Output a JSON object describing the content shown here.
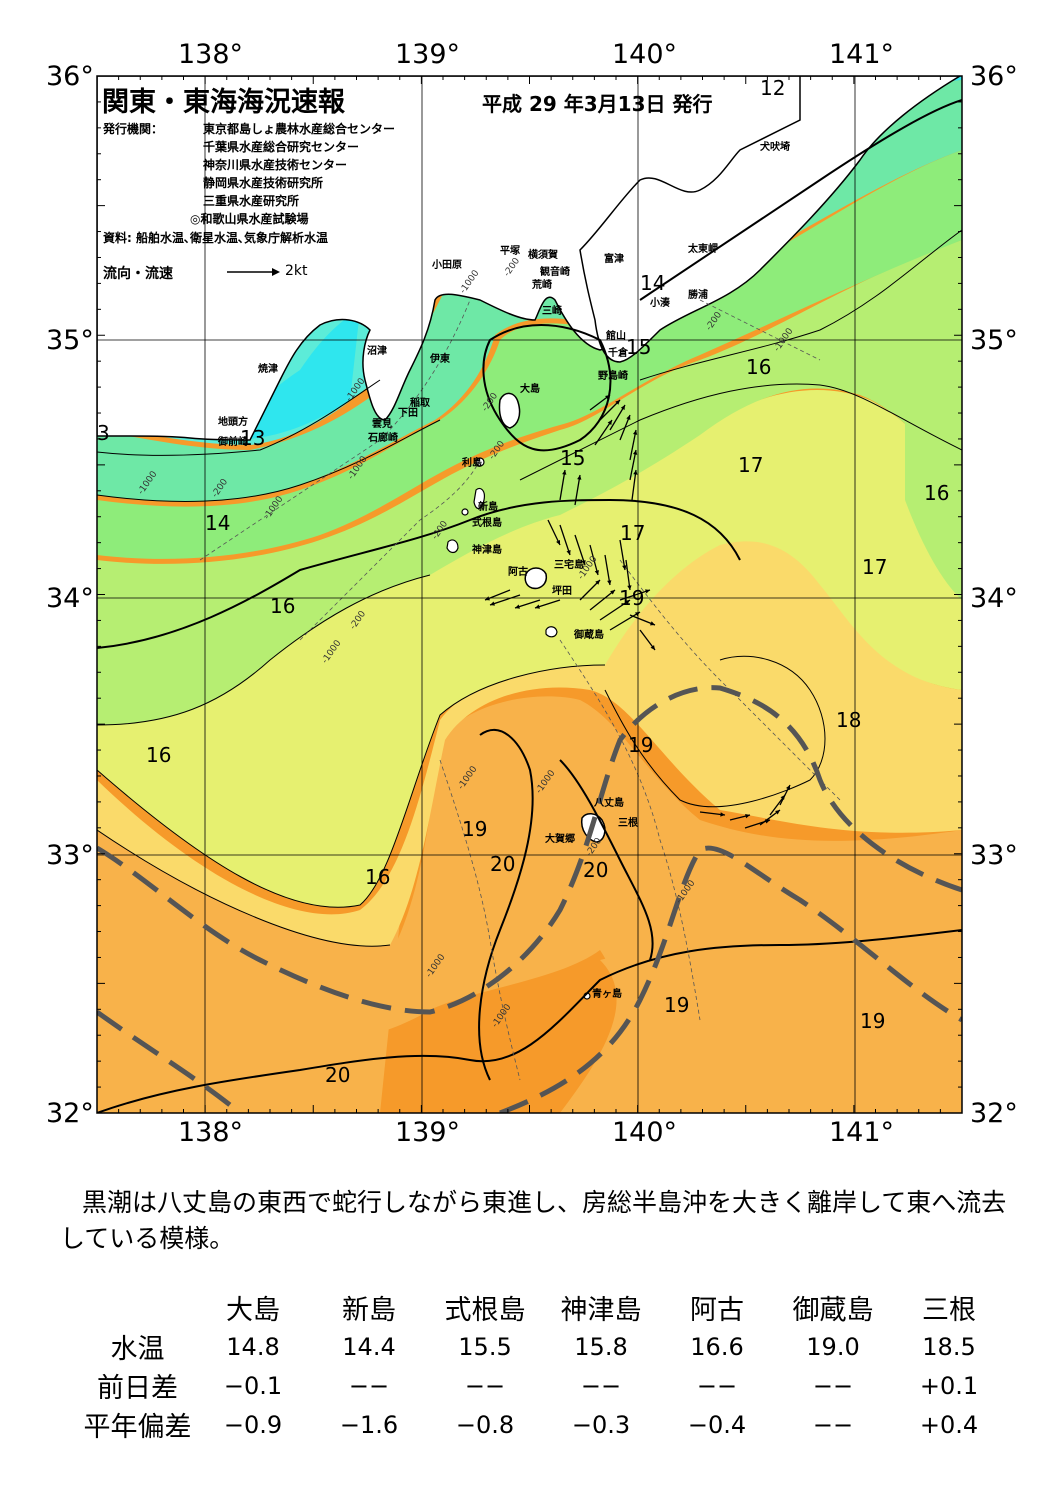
{
  "title": "関東・東海海況速報",
  "issue_date": "平成 29 年3月13日 発行",
  "publisher": {
    "label": "発行機関：",
    "orgs": [
      "東京都島しょ農林水産総合センター",
      "千葉県水産総合研究センター",
      "神奈川県水産技術センター",
      "静岡県水産技術研究所",
      "三重県水産研究所",
      "◎和歌山県水産試験場"
    ]
  },
  "source": "資料: 船舶水温､衛星水温､気象庁解析水温",
  "legend": {
    "label": "流向・流速",
    "speed": "2kt"
  },
  "axes": {
    "lon_ticks": [
      "138°",
      "139°",
      "140°",
      "141°"
    ],
    "lat_ticks": [
      "36°",
      "35°",
      "34°",
      "33°",
      "32°"
    ],
    "lon_range": [
      137.5,
      141.5
    ],
    "lat_range": [
      32,
      36
    ]
  },
  "colors": {
    "t12": "#2fe6ee",
    "t13": "#5cecd8",
    "t14": "#6ee8a6",
    "t15": "#8eec7a",
    "t16": "#b6ee72",
    "t17": "#e6f070",
    "t18": "#fada6a",
    "t19": "#f8b24a",
    "t20": "#f69a2a",
    "land": "#ffffff",
    "kuroshio": "#555555",
    "arrow": "#000000"
  },
  "place_labels": [
    {
      "text": "犬吠埼"
    },
    {
      "text": "太東岬"
    },
    {
      "text": "勝浦"
    },
    {
      "text": "小湊"
    },
    {
      "text": "平塚"
    },
    {
      "text": "横須賀"
    },
    {
      "text": "観音崎"
    },
    {
      "text": "荒崎"
    },
    {
      "text": "富津"
    },
    {
      "text": "三崎"
    },
    {
      "text": "館山"
    },
    {
      "text": "千倉"
    },
    {
      "text": "野島崎"
    },
    {
      "text": "小田原"
    },
    {
      "text": "沼津"
    },
    {
      "text": "伊東"
    },
    {
      "text": "焼津"
    },
    {
      "text": "稲取"
    },
    {
      "text": "下田"
    },
    {
      "text": "雲見"
    },
    {
      "text": "石廊崎"
    },
    {
      "text": "地頭方"
    },
    {
      "text": "御前崎"
    },
    {
      "text": "大島"
    },
    {
      "text": "利島"
    },
    {
      "text": "新島"
    },
    {
      "text": "式根島"
    },
    {
      "text": "神津島"
    },
    {
      "text": "阿古"
    },
    {
      "text": "三宅島"
    },
    {
      "text": "坪田"
    },
    {
      "text": "御蔵島"
    },
    {
      "text": "八丈島"
    },
    {
      "text": "三根"
    },
    {
      "text": "大賀郷"
    },
    {
      "text": "青ヶ島"
    }
  ],
  "isotherm_labels": [
    {
      "text": "12"
    },
    {
      "text": "14"
    },
    {
      "text": "15"
    },
    {
      "text": "16"
    },
    {
      "text": "17"
    },
    {
      "text": "13"
    },
    {
      "text": "3"
    },
    {
      "text": "14"
    },
    {
      "text": "15"
    },
    {
      "text": "17"
    },
    {
      "text": "16"
    },
    {
      "text": "17"
    },
    {
      "text": "16"
    },
    {
      "text": "19"
    },
    {
      "text": "18"
    },
    {
      "text": "19"
    },
    {
      "text": "16"
    },
    {
      "text": "19"
    },
    {
      "text": "20"
    },
    {
      "text": "20"
    },
    {
      "text": "16"
    },
    {
      "text": "19"
    },
    {
      "text": "19"
    },
    {
      "text": "20"
    }
  ],
  "depth_labels": [
    {
      "text": "-200"
    },
    {
      "text": "-1000"
    },
    {
      "text": "-200"
    },
    {
      "text": "-1000"
    },
    {
      "text": "-1000"
    },
    {
      "text": "-200"
    },
    {
      "text": "-1000"
    },
    {
      "text": "-200"
    },
    {
      "text": "-1000"
    },
    {
      "text": "-200"
    },
    {
      "text": "-1000"
    },
    {
      "text": "-200"
    },
    {
      "text": "-200"
    },
    {
      "text": "-1000"
    },
    {
      "text": "-1000"
    },
    {
      "text": "-1000"
    },
    {
      "text": "-1000"
    },
    {
      "text": "-1000"
    },
    {
      "text": "-1000"
    },
    {
      "text": "-200"
    },
    {
      "text": "-1000"
    }
  ],
  "description": "黒潮は八丈島の東西で蛇行しながら東進し、房総半島沖を大きく離岸して東へ流去している模様。",
  "observations": {
    "stations": [
      "大島",
      "新島",
      "式根島",
      "神津島",
      "阿古",
      "御蔵島",
      "三根"
    ],
    "rows": [
      {
        "label": "水温",
        "values": [
          "14.8",
          "14.4",
          "15.5",
          "15.8",
          "16.6",
          "19.0",
          "18.5"
        ]
      },
      {
        "label": "前日差",
        "values": [
          "−0.1",
          "−−",
          "−−",
          "−−",
          "−−",
          "−−",
          "+0.1"
        ]
      },
      {
        "label": "平年偏差",
        "values": [
          "−0.9",
          "−1.6",
          "−0.8",
          "−0.3",
          "−0.4",
          "−−",
          "+0.4"
        ]
      }
    ]
  }
}
